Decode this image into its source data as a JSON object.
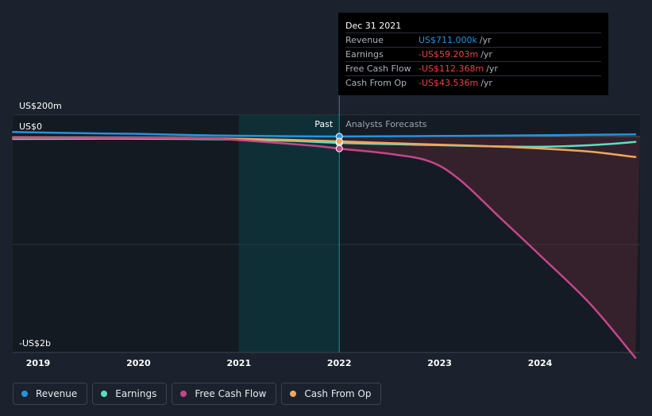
{
  "chart_data": {
    "type": "line",
    "y_labels": {
      "top": "US$200m",
      "zero": "US$0",
      "bottom": "-US$2b"
    },
    "x_ticks": [
      "2019",
      "2020",
      "2021",
      "2022",
      "2023",
      "2024"
    ],
    "past_label": "Past",
    "forecast_label": "Analysts Forecasts",
    "ylim_millions": [
      -2000,
      200
    ],
    "xlim_years": [
      2018.75,
      2024.95
    ],
    "divider_year": 2022.0,
    "past_band_start_year": 2021.0,
    "series": [
      {
        "name": "Revenue",
        "color": "#2394df",
        "x": [
          2018.75,
          2019.5,
          2020.0,
          2020.75,
          2021.5,
          2022.0,
          2022.5,
          2023.0,
          2023.5,
          2024.0,
          2024.5,
          2024.95
        ],
        "y": [
          42,
          30,
          25,
          10,
          3,
          1,
          3,
          5,
          8,
          12,
          16,
          20
        ]
      },
      {
        "name": "Earnings",
        "color": "#58e0c4",
        "x": [
          2018.75,
          2019.5,
          2020.0,
          2020.75,
          2021.5,
          2022.0,
          2022.5,
          2023.0,
          2023.5,
          2024.0,
          2024.5,
          2024.95
        ],
        "y": [
          -22,
          -20,
          -20,
          -25,
          -40,
          -59,
          -70,
          -80,
          -90,
          -95,
          -80,
          -50
        ]
      },
      {
        "name": "Free Cash Flow",
        "color": "#c5468a",
        "x": [
          2018.75,
          2019.5,
          2020.0,
          2020.75,
          2021.25,
          2021.75,
          2022.0,
          2022.5,
          2022.9,
          2023.2,
          2023.6,
          2024.0,
          2024.5,
          2024.95
        ],
        "y": [
          -12,
          -12,
          -12,
          -20,
          -50,
          -85,
          -112,
          -160,
          -230,
          -400,
          -750,
          -1100,
          -1550,
          -2050
        ]
      },
      {
        "name": "Cash From Op",
        "color": "#f2a65a",
        "x": [
          2018.75,
          2019.5,
          2020.0,
          2020.75,
          2021.5,
          2022.0,
          2022.5,
          2023.0,
          2023.5,
          2024.0,
          2024.5,
          2024.95
        ],
        "y": [
          -8,
          -10,
          -12,
          -18,
          -30,
          -44,
          -60,
          -75,
          -90,
          -110,
          -140,
          -190
        ]
      }
    ]
  },
  "tooltip": {
    "date": "Dec 31 2021",
    "rows": [
      {
        "label": "Revenue",
        "value": "US$711.000k",
        "unit": "/yr",
        "color": "#2394df"
      },
      {
        "label": "Earnings",
        "value": "-US$59.203m",
        "unit": "/yr",
        "color": "#e84545"
      },
      {
        "label": "Free Cash Flow",
        "value": "-US$112.368m",
        "unit": "/yr",
        "color": "#e84545"
      },
      {
        "label": "Cash From Op",
        "value": "-US$43.536m",
        "unit": "/yr",
        "color": "#e84545"
      }
    ]
  },
  "legend": [
    {
      "label": "Revenue",
      "color": "#2394df"
    },
    {
      "label": "Earnings",
      "color": "#58e0c4"
    },
    {
      "label": "Free Cash Flow",
      "color": "#c5468a"
    },
    {
      "label": "Cash From Op",
      "color": "#f2a65a"
    }
  ]
}
